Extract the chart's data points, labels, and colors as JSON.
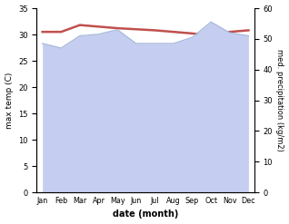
{
  "months": [
    "Jan",
    "Feb",
    "Mar",
    "Apr",
    "May",
    "Jun",
    "Jul",
    "Aug",
    "Sep",
    "Oct",
    "Nov",
    "Dec"
  ],
  "max_temp": [
    30.5,
    30.5,
    31.8,
    31.5,
    31.2,
    31.0,
    30.8,
    30.5,
    30.2,
    29.8,
    30.5,
    30.8
  ],
  "precipitation": [
    48.5,
    47.0,
    51.0,
    51.5,
    53.0,
    48.5,
    48.5,
    48.5,
    50.5,
    55.5,
    52.0,
    51.0
  ],
  "temp_color": "#c0504d",
  "precip_line_color": "#aabbdd",
  "precip_fill_color": "#c5cef0",
  "ylabel_left": "max temp (C)",
  "ylabel_right": "med. precipitation (kg/m2)",
  "xlabel": "date (month)",
  "ylim_left": [
    0,
    35
  ],
  "ylim_right": [
    0,
    60
  ],
  "yticks_left": [
    0,
    5,
    10,
    15,
    20,
    25,
    30,
    35
  ],
  "yticks_right": [
    0,
    10,
    20,
    30,
    40,
    50,
    60
  ],
  "bg_color": "#ffffff"
}
